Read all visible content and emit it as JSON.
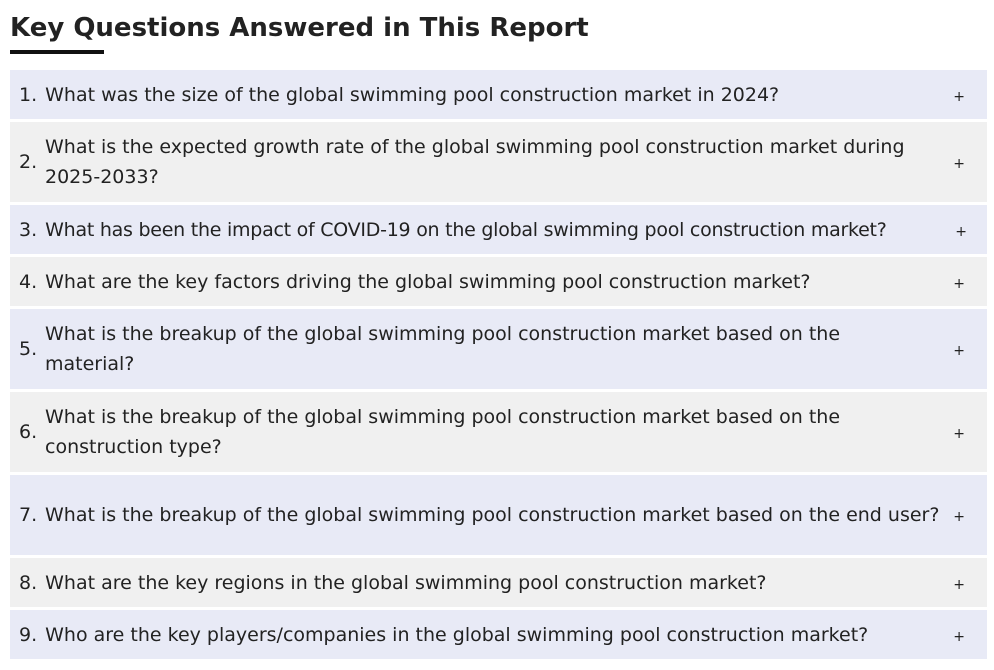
{
  "section": {
    "title": "Key Questions Answered in This Report"
  },
  "toggle_symbol": "+",
  "faq": [
    {
      "num": "1.",
      "question": "What was the size of the global swimming pool construction market in 2024?"
    },
    {
      "num": "2.",
      "question": "What is the expected growth rate of the global swimming pool construction market during 2025-2033?"
    },
    {
      "num": "3.",
      "question": "What has been the impact of COVID-19 on the global swimming pool construction market?"
    },
    {
      "num": "4.",
      "question": "What are the key factors driving the global swimming pool construction market?"
    },
    {
      "num": "5.",
      "question": "What is the breakup of the global swimming pool construction market based on the material?"
    },
    {
      "num": "6.",
      "question": "What is the breakup of the global swimming pool construction market based on the construction type?"
    },
    {
      "num": "7.",
      "question": "What is the breakup of the global swimming pool construction market based on the end user?"
    },
    {
      "num": "8.",
      "question": "What are the key regions in the global swimming pool construction market?"
    },
    {
      "num": "9.",
      "question": "Who are the key players/companies in the global swimming pool construction market?"
    }
  ]
}
